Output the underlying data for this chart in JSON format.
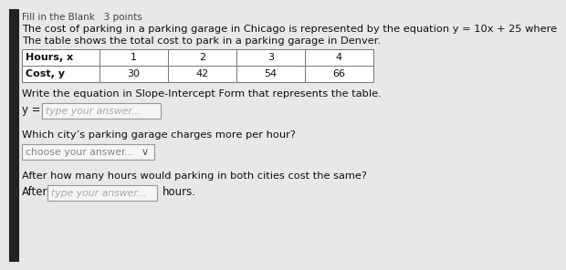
{
  "header_text": "Fill in the Blank   3 points",
  "line1": "The cost of parking in a parking garage in Chicago is represented by the equation y = 10x + 25 where",
  "line2": "The table shows the total cost to park in a parking garage in Denver.",
  "table_col_headers": [
    "Hours, x",
    "1",
    "2",
    "3",
    "4"
  ],
  "table_row2": [
    "Cost, y",
    "30",
    "42",
    "54",
    "66"
  ],
  "q1_label": "Write the equation in Slope-Intercept Form that represents the table.",
  "q1_prefix": "y =",
  "q1_placeholder": "type your answer...",
  "q2_label": "Which city’s parking garage charges more per hour?",
  "q2_placeholder": "choose your answer...",
  "q2_chevron": "∨",
  "q3_label": "After how many hours would parking in both cities cost the same?",
  "q3_prefix": "After",
  "q3_placeholder": "type your answer...",
  "q3_suffix": "hours.",
  "bg_color": "#e8e8e8",
  "table_bg": "#ffffff",
  "input_bg": "#f5f5f5",
  "text_color": "#111111",
  "border_color": "#999999"
}
